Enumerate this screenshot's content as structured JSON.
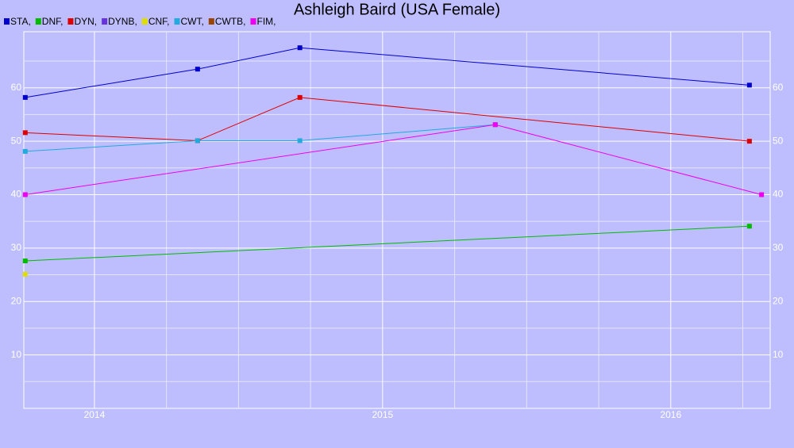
{
  "chart_data": {
    "type": "line",
    "title": "Ashleigh Baird (USA Female)",
    "series": [
      {
        "name": "STA,",
        "color": "#0000cc",
        "x": [
          2013.76,
          2014.358,
          2014.713,
          2016.273
        ],
        "values": [
          58.2,
          63.5,
          67.5,
          60.5
        ]
      },
      {
        "name": "DNF,",
        "color": "#00bb00",
        "x": [
          2013.76,
          2016.273
        ],
        "values": [
          27.6,
          34.1
        ]
      },
      {
        "name": "DYN,",
        "color": "#dd0000",
        "x": [
          2013.76,
          2014.358,
          2014.713,
          2016.273
        ],
        "values": [
          51.6,
          50.1,
          58.2,
          50
        ]
      },
      {
        "name": "DYNB,",
        "color": "#6633dd",
        "x": [],
        "values": []
      },
      {
        "name": "CNF,",
        "color": "#dddd00",
        "x": [
          2013.76
        ],
        "values": [
          25.1
        ]
      },
      {
        "name": "CWT,",
        "color": "#22aadd",
        "x": [
          2013.76,
          2014.358,
          2014.713,
          2015.391
        ],
        "values": [
          48.1,
          50.1,
          50.1,
          53.1
        ]
      },
      {
        "name": "CWTB,",
        "color": "#994400",
        "x": [],
        "values": []
      },
      {
        "name": "FIM,",
        "color": "#ee00ee",
        "x": [
          2013.76,
          2015.391,
          2016.315
        ],
        "values": [
          40,
          53.1,
          40
        ]
      }
    ],
    "xlim": [
      2013.755,
      2016.345
    ],
    "xticks": [
      2014,
      2015,
      2016
    ],
    "xminorticks": [
      2014.25,
      2014.5,
      2014.75,
      2015.25,
      2015.5,
      2015.75,
      2016.25
    ],
    "ylim": [
      0,
      70.5
    ],
    "yticks": [
      10,
      20,
      30,
      40,
      50,
      60
    ],
    "yminorticks": [
      5,
      15,
      25,
      35,
      45,
      55,
      65
    ],
    "grid": true
  }
}
